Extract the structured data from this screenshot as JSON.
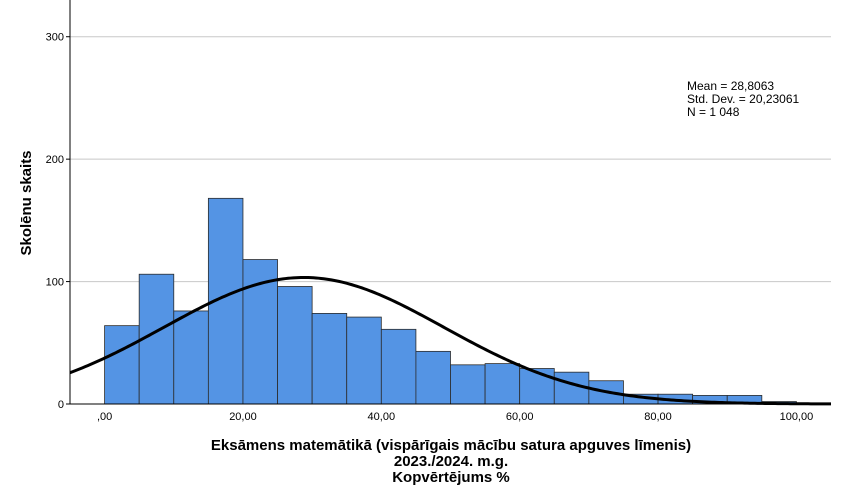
{
  "chart_data": {
    "type": "bar",
    "subtype": "histogram",
    "bin_width": 5,
    "bins": [
      {
        "x0": 0,
        "x1": 5,
        "count": 64
      },
      {
        "x0": 5,
        "x1": 10,
        "count": 106
      },
      {
        "x0": 10,
        "x1": 15,
        "count": 76
      },
      {
        "x0": 15,
        "x1": 20,
        "count": 168
      },
      {
        "x0": 20,
        "x1": 25,
        "count": 118
      },
      {
        "x0": 25,
        "x1": 30,
        "count": 96
      },
      {
        "x0": 30,
        "x1": 35,
        "count": 74
      },
      {
        "x0": 35,
        "x1": 40,
        "count": 71
      },
      {
        "x0": 40,
        "x1": 45,
        "count": 61
      },
      {
        "x0": 45,
        "x1": 50,
        "count": 43
      },
      {
        "x0": 50,
        "x1": 55,
        "count": 32
      },
      {
        "x0": 55,
        "x1": 60,
        "count": 33
      },
      {
        "x0": 60,
        "x1": 65,
        "count": 29
      },
      {
        "x0": 65,
        "x1": 70,
        "count": 26
      },
      {
        "x0": 70,
        "x1": 75,
        "count": 19
      },
      {
        "x0": 75,
        "x1": 80,
        "count": 8
      },
      {
        "x0": 80,
        "x1": 85,
        "count": 8
      },
      {
        "x0": 85,
        "x1": 90,
        "count": 7
      },
      {
        "x0": 90,
        "x1": 95,
        "count": 7
      },
      {
        "x0": 95,
        "x1": 100,
        "count": 2
      }
    ],
    "normal_curve": {
      "mean": 28.8063,
      "std_dev": 20.23061,
      "n": 1048
    },
    "xlim": [
      -5,
      105
    ],
    "ylim": [
      0,
      330
    ],
    "x_ticks": [
      0,
      20,
      40,
      60,
      80,
      100
    ],
    "x_tick_labels": [
      ",00",
      "20,00",
      "40,00",
      "60,00",
      "80,00",
      "100,00"
    ],
    "y_ticks": [
      0,
      100,
      200,
      300
    ],
    "y_tick_labels": [
      "0",
      "100",
      "200",
      "300"
    ],
    "grid": "horizontal",
    "title": "",
    "xlabel_lines": [
      "Eksāmens matemātikā (vispārīgais mācību satura apguves līmenis)",
      "2023./2024. m.g.",
      "Kopvērtējums %"
    ],
    "ylabel": "Skolēnu skaits",
    "stats_lines": [
      "Mean = 28,8063",
      "Std. Dev. = 20,23061",
      "N = 1 048"
    ],
    "colors": {
      "bar_fill": "#5494e4",
      "bar_stroke": "#2b2b2b",
      "curve": "#000000",
      "grid": "#c8c8c8",
      "axis": "#000000"
    }
  }
}
